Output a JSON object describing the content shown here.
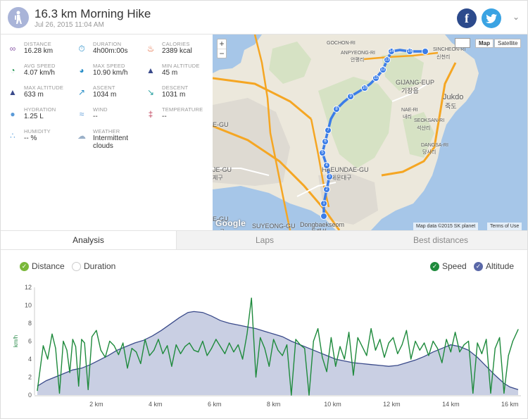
{
  "header": {
    "title": "16.3 km Morning Hike",
    "subtitle": "Jul 26, 2015 11:04 AM",
    "facebook_label": "f",
    "twitter_label": "🐦",
    "chevron": "⌄"
  },
  "stats": [
    {
      "label": "Distance",
      "value": "16.28 km",
      "icon": "route-icon",
      "color": "#8b5aa8",
      "glyph": "∞"
    },
    {
      "label": "Duration",
      "value": "4h00m:00s",
      "icon": "stopwatch-icon",
      "color": "#2a8fc8",
      "glyph": "⏱"
    },
    {
      "label": "Calories",
      "value": "2389 kcal",
      "icon": "flame-icon",
      "color": "#e05a2a",
      "glyph": "♨"
    },
    {
      "label": "Avg Speed",
      "value": "4.07 km/h",
      "icon": "speedometer-icon",
      "color": "#2a9a5a",
      "glyph": "◔"
    },
    {
      "label": "Max Speed",
      "value": "10.90 km/h",
      "icon": "speedometer-max-icon",
      "color": "#2a8fc8",
      "glyph": "◕"
    },
    {
      "label": "Min Altitude",
      "value": "45 m",
      "icon": "mountain-min-icon",
      "color": "#3a4a8a",
      "glyph": "▲"
    },
    {
      "label": "Max Altitude",
      "value": "633 m",
      "icon": "mountain-max-icon",
      "color": "#3a4a8a",
      "glyph": "▲"
    },
    {
      "label": "Ascent",
      "value": "1034 m",
      "icon": "ascent-icon",
      "color": "#2a8fc8",
      "glyph": "↗"
    },
    {
      "label": "Descent",
      "value": "1031 m",
      "icon": "descent-icon",
      "color": "#2aa0a0",
      "glyph": "↘"
    },
    {
      "label": "Hydration",
      "value": "1.25 L",
      "icon": "water-drop-icon",
      "color": "#5a9ad8",
      "glyph": "●"
    },
    {
      "label": "Wind",
      "value": "--",
      "icon": "wind-icon",
      "color": "#5a9ad8",
      "glyph": "≈"
    },
    {
      "label": "Temperature",
      "value": "--",
      "icon": "thermometer-icon",
      "color": "#c0405a",
      "glyph": "‡"
    },
    {
      "label": "Humidity",
      "value": "-- %",
      "icon": "humidity-icon",
      "color": "#6aa8e0",
      "glyph": "∴"
    },
    {
      "label": "Weather",
      "value": "Intermittent clouds",
      "icon": "cloud-sun-icon",
      "color": "#9ab0c8",
      "glyph": "☁"
    }
  ],
  "map": {
    "zoom_in": "+",
    "zoom_out": "−",
    "type_map": "Map",
    "type_satellite": "Satellite",
    "attribution": "Map data ©2015 SK planet",
    "terms": "Terms of Use",
    "logo": "Google",
    "labels": [
      "GOCHON-RI",
      "ANPYEONG-RI",
      "안평리",
      "SINCHEON-RI",
      "신천리",
      "GIJANG-EUP",
      "기장읍",
      "Jukdo",
      "죽도",
      "NAE-RI",
      "내리",
      "SEOKSAN-RI",
      "석산리",
      "DANGSA-RI",
      "당사리",
      "HAEUNDAE-GU",
      "해운대구",
      "SUYEONG-GU",
      "Dongbaekseom",
      "동백섬",
      "E-GU",
      "JE-GU",
      "제구",
      "E-GU",
      "구"
    ],
    "waypoints": [
      "1",
      "2",
      "3",
      "4",
      "5",
      "6",
      "7",
      "8",
      "9",
      "10",
      "11",
      "12",
      "13",
      "14",
      "15"
    ]
  },
  "tabs": [
    {
      "label": "Analysis",
      "active": true
    },
    {
      "label": "Laps",
      "active": false
    },
    {
      "label": "Best distances",
      "active": false
    }
  ],
  "toggles": {
    "distance": "Distance",
    "duration": "Duration",
    "speed": "Speed",
    "altitude": "Altitude"
  },
  "chart_data": {
    "type": "line",
    "ylabel": "km/h",
    "ylim": [
      0,
      12
    ],
    "yticks": [
      "0",
      "2",
      "4",
      "6",
      "8",
      "10",
      "12"
    ],
    "xlim": [
      0,
      16.28
    ],
    "xticks": [
      "2 km",
      "4 km",
      "6 km",
      "8 km",
      "10 km",
      "12 km",
      "14 km",
      "16 km"
    ],
    "xtick_values": [
      2,
      4,
      6,
      8,
      10,
      12,
      14,
      16
    ],
    "series": [
      {
        "name": "Speed",
        "color": "#1e8a3c",
        "x": [
          0.0,
          0.2,
          0.35,
          0.5,
          0.62,
          0.75,
          0.88,
          1.0,
          1.1,
          1.2,
          1.3,
          1.4,
          1.5,
          1.6,
          1.72,
          1.85,
          2.0,
          2.15,
          2.3,
          2.45,
          2.6,
          2.75,
          2.9,
          3.05,
          3.2,
          3.35,
          3.5,
          3.65,
          3.8,
          3.95,
          4.1,
          4.25,
          4.4,
          4.55,
          4.7,
          4.85,
          5.0,
          5.15,
          5.3,
          5.45,
          5.6,
          5.75,
          5.9,
          6.05,
          6.2,
          6.35,
          6.5,
          6.65,
          6.8,
          6.95,
          7.1,
          7.25,
          7.4,
          7.55,
          7.7,
          7.85,
          8.0,
          8.15,
          8.3,
          8.45,
          8.6,
          8.75,
          8.9,
          9.05,
          9.2,
          9.35,
          9.5,
          9.65,
          9.8,
          9.95,
          10.1,
          10.25,
          10.4,
          10.55,
          10.7,
          10.85,
          11.0,
          11.15,
          11.3,
          11.45,
          11.6,
          11.75,
          11.9,
          12.05,
          12.2,
          12.35,
          12.5,
          12.65,
          12.8,
          12.95,
          13.1,
          13.25,
          13.4,
          13.55,
          13.7,
          13.85,
          14.0,
          14.15,
          14.3,
          14.45,
          14.6,
          14.75,
          14.9,
          15.05,
          15.2,
          15.35,
          15.5,
          15.65,
          15.8,
          15.95,
          16.1,
          16.28
        ],
        "values": [
          0.5,
          5.5,
          4.0,
          6.8,
          5.2,
          0.2,
          6.0,
          5.0,
          2.5,
          6.2,
          5.4,
          1.0,
          6.2,
          5.8,
          0.6,
          6.5,
          7.2,
          5.0,
          4.2,
          6.0,
          5.5,
          4.5,
          5.8,
          3.0,
          5.2,
          4.8,
          3.5,
          6.2,
          4.4,
          5.0,
          6.2,
          4.6,
          5.5,
          3.2,
          5.6,
          4.6,
          5.4,
          5.8,
          5.0,
          4.8,
          6.0,
          4.4,
          5.2,
          6.2,
          5.4,
          4.6,
          5.8,
          4.8,
          5.6,
          4.0,
          6.8,
          10.8,
          2.0,
          6.4,
          5.2,
          3.2,
          6.2,
          5.0,
          4.4,
          5.6,
          0.0,
          6.2,
          5.6,
          5.2,
          0.0,
          6.0,
          7.4,
          4.2,
          2.6,
          6.4,
          3.2,
          5.4,
          4.0,
          7.0,
          2.2,
          6.4,
          5.4,
          4.4,
          7.4,
          5.0,
          6.2,
          4.2,
          5.8,
          6.4,
          4.6,
          5.6,
          7.2,
          4.0,
          6.0,
          5.0,
          5.8,
          4.4,
          6.0,
          5.2,
          3.6,
          6.2,
          4.8,
          7.0,
          4.8,
          5.6,
          6.0,
          0.2,
          5.8,
          4.6,
          6.2,
          0.2,
          5.2,
          6.4,
          0.2,
          4.4,
          6.0,
          7.3
        ]
      },
      {
        "name": "Altitude",
        "color": "#3a4a8a",
        "fill": "#c9cfe3",
        "x": [
          0.0,
          0.3,
          0.6,
          0.9,
          1.2,
          1.5,
          1.8,
          2.1,
          2.4,
          2.7,
          3.0,
          3.3,
          3.6,
          3.9,
          4.2,
          4.5,
          4.8,
          5.1,
          5.3,
          5.6,
          5.9,
          6.2,
          6.5,
          6.8,
          7.1,
          7.4,
          7.7,
          8.0,
          8.3,
          8.6,
          8.9,
          9.2,
          9.5,
          9.8,
          10.1,
          10.4,
          10.7,
          11.0,
          11.3,
          11.6,
          11.9,
          12.2,
          12.5,
          12.8,
          13.1,
          13.4,
          13.7,
          14.0,
          14.3,
          14.6,
          14.9,
          15.2,
          15.5,
          15.8,
          16.0,
          16.28
        ],
        "values": [
          1.0,
          1.6,
          2.0,
          2.4,
          2.8,
          3.0,
          3.4,
          3.9,
          4.4,
          5.0,
          5.4,
          5.8,
          6.1,
          6.6,
          7.2,
          7.9,
          8.6,
          9.2,
          9.3,
          9.2,
          8.8,
          8.3,
          8.0,
          7.8,
          7.6,
          7.4,
          7.1,
          6.8,
          6.5,
          6.0,
          5.6,
          5.2,
          4.8,
          4.4,
          4.0,
          3.8,
          3.6,
          3.5,
          3.4,
          3.3,
          3.2,
          3.3,
          3.6,
          3.9,
          4.3,
          4.8,
          5.2,
          5.6,
          5.4,
          5.0,
          4.2,
          3.2,
          2.2,
          1.3,
          0.9,
          0.6
        ]
      }
    ]
  }
}
